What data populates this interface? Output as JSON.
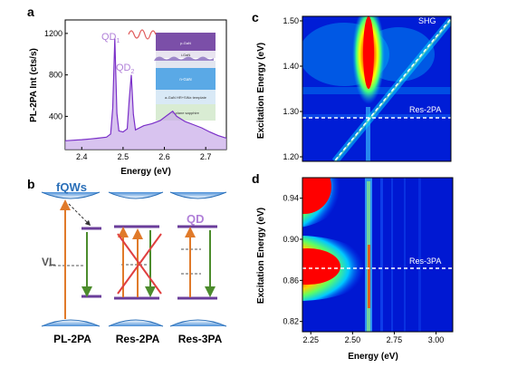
{
  "panels": {
    "a": {
      "letter": "a",
      "ylabel": "PL-2PA Int (cts/s)",
      "xlabel": "Energy (eV)",
      "qd1": "QD",
      "qd1_sub": "1",
      "qd2": "QD",
      "qd2_sub": "2",
      "inset_layers": [
        "p-GaN",
        "i-GaN",
        "n-GaN",
        "a-GaN HR+SiNx template",
        "n-plane sapphire"
      ]
    },
    "b": {
      "letter": "b",
      "fqws": "fQWs",
      "vl": "VL",
      "qd": "QD",
      "labels": [
        "PL-2PA",
        "Res-2PA",
        "Res-3PA"
      ]
    },
    "c": {
      "letter": "c",
      "ylabel": "Excitation Energy (eV)",
      "shg": "SHG",
      "res": "Res-2PA"
    },
    "d": {
      "letter": "d",
      "ylabel": "Excitation Energy (eV)",
      "xlabel": "Energy (eV)",
      "res": "Res-3PA"
    }
  },
  "chart_data": [
    {
      "type": "line",
      "panel": "a",
      "xlabel": "Energy (eV)",
      "ylabel": "PL-2PA Int (cts/s)",
      "xlim": [
        2.36,
        2.75
      ],
      "ylim": [
        80,
        1330
      ],
      "x_ticks": [
        2.4,
        2.5,
        2.6,
        2.7
      ],
      "y_ticks": [
        400,
        800,
        1200
      ],
      "series": [
        {
          "x": [
            2.36,
            2.38,
            2.4,
            2.42,
            2.44,
            2.46,
            2.47,
            2.475,
            2.48,
            2.485,
            2.49,
            2.5,
            2.51,
            2.515,
            2.52,
            2.525,
            2.53,
            2.55,
            2.57,
            2.59,
            2.61,
            2.62,
            2.63,
            2.65,
            2.67,
            2.69,
            2.71,
            2.73,
            2.75
          ],
          "y": [
            165,
            170,
            175,
            182,
            190,
            200,
            230,
            480,
            1150,
            430,
            260,
            250,
            280,
            560,
            800,
            420,
            270,
            310,
            330,
            360,
            420,
            450,
            400,
            350,
            320,
            290,
            250,
            215,
            190
          ]
        }
      ],
      "annotations": [
        "QD1",
        "QD2"
      ]
    },
    {
      "type": "heatmap",
      "panel": "c",
      "ylabel": "Excitation Energy (eV)",
      "ylim": [
        1.19,
        1.51
      ],
      "y_ticks": [
        1.2,
        1.3,
        1.4,
        1.5
      ],
      "lines": [
        "SHG",
        "Res-2PA"
      ],
      "res_line_y": 1.29
    },
    {
      "type": "heatmap",
      "panel": "d",
      "xlabel": "Energy (eV)",
      "ylabel": "Excitation Energy (eV)",
      "xlim": [
        2.2,
        3.1
      ],
      "ylim": [
        0.81,
        0.96
      ],
      "x_ticks": [
        2.25,
        2.5,
        2.75,
        3.0
      ],
      "y_ticks": [
        0.82,
        0.86,
        0.9,
        0.94
      ],
      "lines": [
        "Res-3PA"
      ],
      "res_line_y": 0.87
    }
  ]
}
